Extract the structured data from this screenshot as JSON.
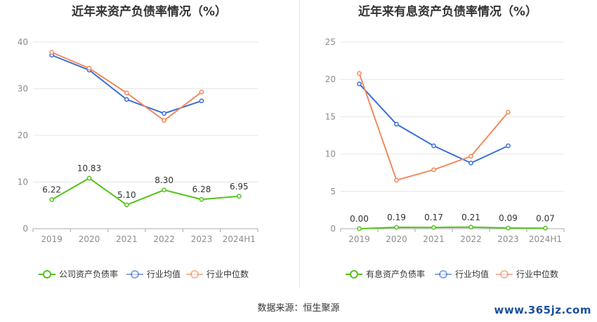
{
  "source_text": "数据来源：恒生聚源",
  "watermark": "www.365jz.com",
  "colors": {
    "company": "#52c41a",
    "industry_avg": "#3a6fd8",
    "industry_median": "#f08a5d",
    "grid": "#e6e6e6",
    "axis_text": "#8c8c8c"
  },
  "chart_data": [
    {
      "type": "line",
      "title": "近年来资产负债率情况（%）",
      "categories": [
        "2019",
        "2020",
        "2021",
        "2022",
        "2023",
        "2024H1"
      ],
      "ylim": [
        0,
        40
      ],
      "yticks": [
        0,
        10,
        20,
        30,
        40
      ],
      "grid": true,
      "legend_position": "bottom",
      "series": [
        {
          "name": "公司资产负债率",
          "color": "#52c41a",
          "values": [
            6.22,
            10.83,
            5.1,
            8.3,
            6.28,
            6.95
          ],
          "labels": [
            "6.22",
            "10.83",
            "5.10",
            "8.30",
            "6.28",
            "6.95"
          ]
        },
        {
          "name": "行业均值",
          "color": "#3a6fd8",
          "values": [
            37.2,
            34.0,
            27.7,
            24.7,
            27.4,
            null
          ]
        },
        {
          "name": "行业中位数",
          "color": "#f08a5d",
          "values": [
            37.8,
            34.4,
            29.1,
            23.2,
            29.3,
            null
          ]
        }
      ]
    },
    {
      "type": "line",
      "title": "近年来有息资产负债率情况（%）",
      "categories": [
        "2019",
        "2020",
        "2021",
        "2022",
        "2023",
        "2024H1"
      ],
      "ylim": [
        0,
        25
      ],
      "yticks": [
        0,
        5,
        10,
        15,
        20,
        25
      ],
      "grid": true,
      "legend_position": "bottom",
      "series": [
        {
          "name": "有息资产负债率",
          "color": "#52c41a",
          "values": [
            0.0,
            0.19,
            0.17,
            0.21,
            0.09,
            0.07
          ],
          "labels": [
            "0.00",
            "0.19",
            "0.17",
            "0.21",
            "0.09",
            "0.07"
          ]
        },
        {
          "name": "行业均值",
          "color": "#3a6fd8",
          "values": [
            19.4,
            14.0,
            11.1,
            8.8,
            11.1,
            null
          ]
        },
        {
          "name": "行业中位数",
          "color": "#f08a5d",
          "values": [
            20.8,
            6.5,
            7.9,
            9.7,
            15.6,
            null
          ]
        }
      ]
    }
  ]
}
